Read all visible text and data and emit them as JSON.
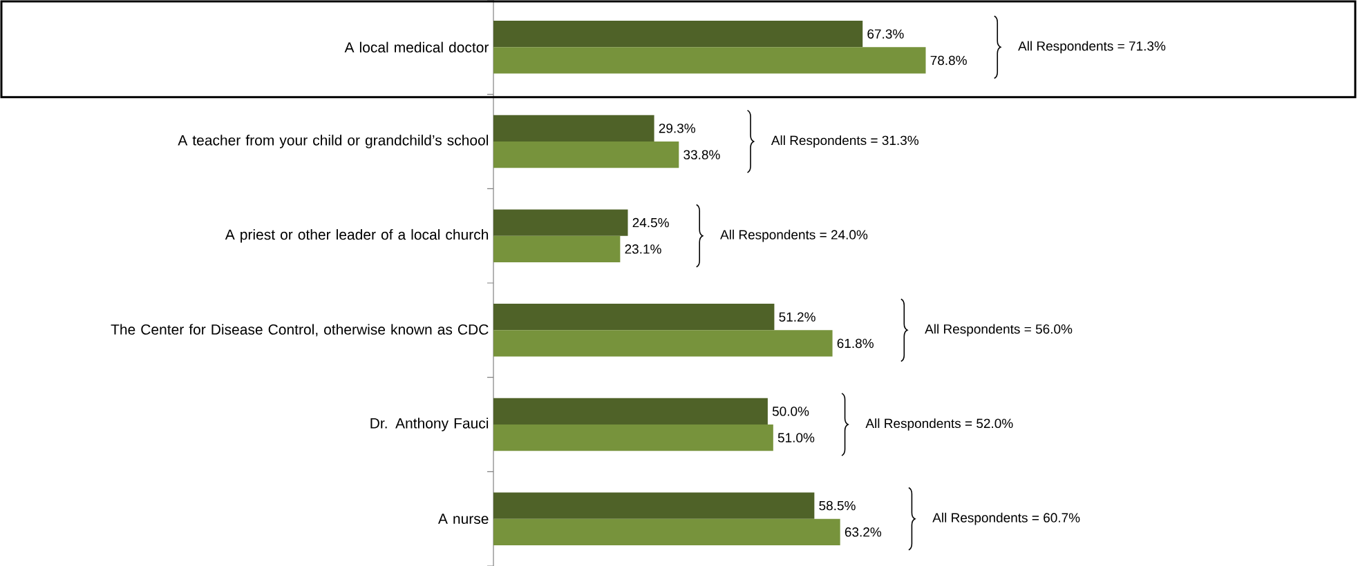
{
  "chart_data": {
    "type": "bar",
    "orientation": "horizontal",
    "categories": [
      "A local medical doctor",
      "A teacher from your child or grandchild’s school",
      "A priest or other leader of a local church",
      "The Center for Disease Control, otherwise known as CDC",
      "Dr. Anthony Fauci",
      "A nurse"
    ],
    "series": [
      {
        "color": "#4f6228",
        "values": [
          67.3,
          29.3,
          24.5,
          51.2,
          50.0,
          58.5
        ],
        "value_labels": [
          "67.3%",
          "29.3%",
          "24.5%",
          "51.2%",
          "50.0%",
          "58.5%"
        ]
      },
      {
        "color": "#77933c",
        "values": [
          78.8,
          33.8,
          23.1,
          61.8,
          51.0,
          63.2
        ],
        "value_labels": [
          "78.8%",
          "33.8%",
          "23.1%",
          "61.8%",
          "51.0%",
          "63.2%"
        ]
      }
    ],
    "annotations": [
      "All Respondents = 71.3%",
      "All Respondents = 31.3%",
      "All Respondents = 24.0%",
      "All Respondents = 56.0%",
      "All Respondents = 52.0%",
      "All Respondents = 60.7%"
    ],
    "tick_labels": "y",
    "grid": false
  }
}
